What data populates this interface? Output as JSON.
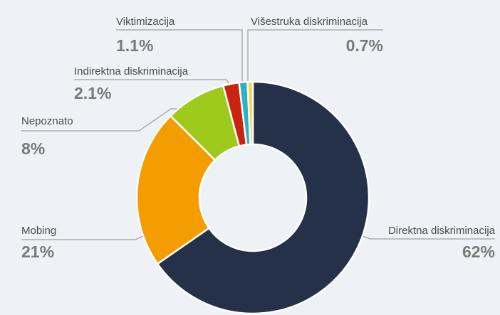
{
  "chart_data": {
    "type": "donut",
    "categories": [
      "Direktna diskriminacija",
      "Mobing",
      "Nepoznato",
      "Indirektna diskriminacija",
      "Viktimizacija",
      "Višestruka diskriminacija"
    ],
    "values": [
      62,
      21,
      8,
      2.1,
      1.1,
      0.7
    ],
    "value_labels": [
      "62%",
      "21%",
      "8%",
      "2.1%",
      "1.1%",
      "0.7%"
    ],
    "colors": [
      "#253149",
      "#f59c00",
      "#9ecb1b",
      "#c9240f",
      "#2ab3c7",
      "#f5d64a"
    ]
  }
}
